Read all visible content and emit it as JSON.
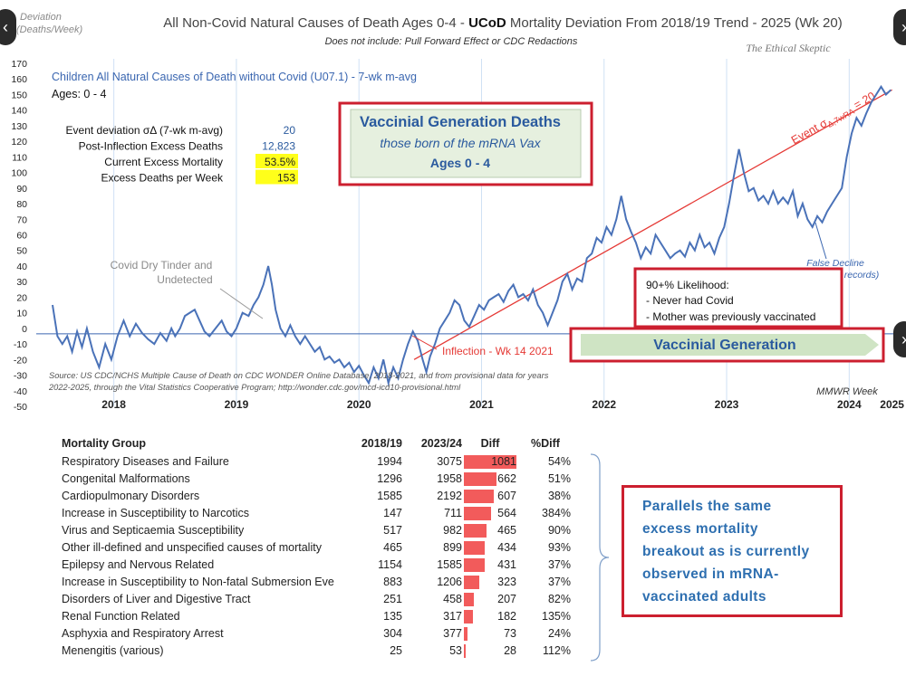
{
  "chart_data": {
    "type": "line",
    "title_parts": {
      "pre": "All Non-Covid Natural Causes of Death Ages 0-4 - ",
      "bold": "UCoD",
      "post": " Mortality Deviation From 2018/19 Trend - 2025 (Wk 20)"
    },
    "subtitle": "Does not include: Pull Forward Effect or CDC Redactions",
    "watermark": "The Ethical Skeptic",
    "ylabel": "Deviation (Deaths/Week)",
    "xlabel": "MMWR Week",
    "ylim": [
      -50,
      170
    ],
    "yticks": [
      -50,
      -40,
      -30,
      -20,
      -10,
      0,
      10,
      20,
      30,
      40,
      50,
      60,
      70,
      80,
      90,
      100,
      110,
      120,
      130,
      140,
      150,
      160,
      170
    ],
    "x_ticks": [
      "2018",
      "2019",
      "2020",
      "2021",
      "2022",
      "2023",
      "2024",
      "2025"
    ],
    "series": [
      {
        "name": "Children All Natural Causes of Death without Covid (U07.1) - 7-wk m-avg",
        "color": "#4a72b8",
        "points": [
          [
            2018.0,
            15
          ],
          [
            2018.04,
            -5
          ],
          [
            2018.08,
            -10
          ],
          [
            2018.12,
            -5
          ],
          [
            2018.16,
            -15
          ],
          [
            2018.2,
            -2
          ],
          [
            2018.24,
            -12
          ],
          [
            2018.28,
            0
          ],
          [
            2018.33,
            -15
          ],
          [
            2018.38,
            -25
          ],
          [
            2018.43,
            -10
          ],
          [
            2018.48,
            -20
          ],
          [
            2018.53,
            -5
          ],
          [
            2018.58,
            5
          ],
          [
            2018.63,
            -5
          ],
          [
            2018.68,
            3
          ],
          [
            2018.73,
            -3
          ],
          [
            2018.78,
            -7
          ],
          [
            2018.83,
            -10
          ],
          [
            2018.88,
            -3
          ],
          [
            2018.93,
            -8
          ],
          [
            2018.97,
            0
          ],
          [
            2019.0,
            -5
          ],
          [
            2019.04,
            0
          ],
          [
            2019.08,
            8
          ],
          [
            2019.12,
            10
          ],
          [
            2019.16,
            12
          ],
          [
            2019.2,
            5
          ],
          [
            2019.24,
            -2
          ],
          [
            2019.28,
            -5
          ],
          [
            2019.33,
            0
          ],
          [
            2019.38,
            5
          ],
          [
            2019.42,
            -2
          ],
          [
            2019.46,
            -5
          ],
          [
            2019.5,
            0
          ],
          [
            2019.55,
            10
          ],
          [
            2019.6,
            8
          ],
          [
            2019.64,
            15
          ],
          [
            2019.68,
            20
          ],
          [
            2019.72,
            28
          ],
          [
            2019.76,
            40
          ],
          [
            2019.79,
            28
          ],
          [
            2019.82,
            12
          ],
          [
            2019.86,
            0
          ],
          [
            2019.9,
            -5
          ],
          [
            2019.94,
            2
          ],
          [
            2019.98,
            -5
          ],
          [
            2020.02,
            -10
          ],
          [
            2020.06,
            -5
          ],
          [
            2020.1,
            -10
          ],
          [
            2020.14,
            -15
          ],
          [
            2020.18,
            -12
          ],
          [
            2020.22,
            -20
          ],
          [
            2020.26,
            -18
          ],
          [
            2020.3,
            -22
          ],
          [
            2020.34,
            -20
          ],
          [
            2020.38,
            -25
          ],
          [
            2020.42,
            -22
          ],
          [
            2020.46,
            -28
          ],
          [
            2020.5,
            -24
          ],
          [
            2020.54,
            -30
          ],
          [
            2020.58,
            -35
          ],
          [
            2020.62,
            -25
          ],
          [
            2020.66,
            -32
          ],
          [
            2020.7,
            -20
          ],
          [
            2020.74,
            -35
          ],
          [
            2020.78,
            -25
          ],
          [
            2020.82,
            -32
          ],
          [
            2020.86,
            -20
          ],
          [
            2020.9,
            -10
          ],
          [
            2020.94,
            -2
          ],
          [
            2020.98,
            -8
          ],
          [
            2021.02,
            -20
          ],
          [
            2021.05,
            -28
          ],
          [
            2021.08,
            -18
          ],
          [
            2021.12,
            -10
          ],
          [
            2021.16,
            0
          ],
          [
            2021.2,
            5
          ],
          [
            2021.24,
            10
          ],
          [
            2021.28,
            18
          ],
          [
            2021.32,
            15
          ],
          [
            2021.36,
            5
          ],
          [
            2021.4,
            1
          ],
          [
            2021.44,
            8
          ],
          [
            2021.48,
            15
          ],
          [
            2021.52,
            12
          ],
          [
            2021.56,
            18
          ],
          [
            2021.6,
            20
          ],
          [
            2021.64,
            22
          ],
          [
            2021.68,
            17
          ],
          [
            2021.72,
            24
          ],
          [
            2021.76,
            28
          ],
          [
            2021.8,
            20
          ],
          [
            2021.84,
            22
          ],
          [
            2021.88,
            18
          ],
          [
            2021.92,
            25
          ],
          [
            2021.96,
            15
          ],
          [
            2022.0,
            10
          ],
          [
            2022.04,
            2
          ],
          [
            2022.08,
            10
          ],
          [
            2022.12,
            18
          ],
          [
            2022.16,
            30
          ],
          [
            2022.2,
            35
          ],
          [
            2022.24,
            25
          ],
          [
            2022.28,
            32
          ],
          [
            2022.32,
            30
          ],
          [
            2022.36,
            45
          ],
          [
            2022.4,
            48
          ],
          [
            2022.44,
            58
          ],
          [
            2022.48,
            55
          ],
          [
            2022.52,
            65
          ],
          [
            2022.56,
            60
          ],
          [
            2022.6,
            70
          ],
          [
            2022.64,
            85
          ],
          [
            2022.68,
            70
          ],
          [
            2022.72,
            62
          ],
          [
            2022.76,
            55
          ],
          [
            2022.8,
            45
          ],
          [
            2022.84,
            52
          ],
          [
            2022.88,
            48
          ],
          [
            2022.92,
            60
          ],
          [
            2022.96,
            55
          ],
          [
            2023.0,
            50
          ],
          [
            2023.04,
            45
          ],
          [
            2023.08,
            48
          ],
          [
            2023.12,
            50
          ],
          [
            2023.16,
            46
          ],
          [
            2023.2,
            55
          ],
          [
            2023.24,
            50
          ],
          [
            2023.28,
            60
          ],
          [
            2023.32,
            52
          ],
          [
            2023.36,
            55
          ],
          [
            2023.4,
            48
          ],
          [
            2023.44,
            58
          ],
          [
            2023.48,
            65
          ],
          [
            2023.52,
            80
          ],
          [
            2023.56,
            98
          ],
          [
            2023.6,
            115
          ],
          [
            2023.64,
            100
          ],
          [
            2023.68,
            88
          ],
          [
            2023.72,
            90
          ],
          [
            2023.76,
            82
          ],
          [
            2023.8,
            85
          ],
          [
            2023.84,
            80
          ],
          [
            2023.88,
            88
          ],
          [
            2023.92,
            80
          ],
          [
            2023.96,
            84
          ],
          [
            2024.0,
            80
          ],
          [
            2024.04,
            88
          ],
          [
            2024.08,
            72
          ],
          [
            2024.12,
            80
          ],
          [
            2024.16,
            70
          ],
          [
            2024.2,
            65
          ],
          [
            2024.24,
            72
          ],
          [
            2024.28,
            68
          ],
          [
            2024.32,
            75
          ],
          [
            2024.36,
            80
          ],
          [
            2024.4,
            85
          ],
          [
            2024.44,
            90
          ],
          [
            2024.48,
            110
          ],
          [
            2024.52,
            125
          ],
          [
            2024.56,
            135
          ],
          [
            2024.6,
            130
          ],
          [
            2024.64,
            138
          ],
          [
            2024.68,
            145
          ],
          [
            2024.72,
            150
          ],
          [
            2024.76,
            155
          ],
          [
            2024.8,
            150
          ],
          [
            2024.84,
            153
          ]
        ]
      },
      {
        "name": "Event σ trend",
        "color": "#e53935",
        "points": [
          [
            2020.95,
            -20
          ],
          [
            2024.85,
            153
          ]
        ]
      }
    ],
    "baseline": 0
  },
  "labels": {
    "series_label": "Children All Natural Causes of Death without Covid (U07.1) - 7-wk m-avg",
    "ages": "Ages: 0 - 4",
    "trend_label": "Event σΔ,7wRA = 20",
    "false_decline": "False Decline\n(missing records)",
    "dry_tinder": "Covid Dry Tinder and\nUndetected",
    "inflection": "Inflection - Wk 14 2021",
    "source": "Source: US CDC/NCHS Multiple Cause of Death on CDC WONDER Online Database, 2018-2021, and from provisional data for years 2022-2025, through the Vital Statistics Cooperative Program; http://wonder.cdc.gov/mcd-icd10-provisional.html"
  },
  "stats": [
    {
      "label": "Event deviation σΔ (7-wk m-avg)",
      "value": "20",
      "highlight": false
    },
    {
      "label": "Post-Inflection Excess Deaths",
      "value": "12,823",
      "highlight": false
    },
    {
      "label": "Current Excess Mortality",
      "value": "53.5%",
      "highlight": true
    },
    {
      "label": "Excess Deaths per Week",
      "value": "153",
      "highlight": true
    }
  ],
  "callout_main": {
    "title": "Vaccinial Generation Deaths",
    "line2": "those born of the mRNA Vax",
    "line3": "Ages 0 - 4"
  },
  "callout_likelihood": {
    "title": "90+% Likelihood:",
    "items": [
      "- Never had Covid",
      "- Mother was previously vaccinated"
    ]
  },
  "vaccinial_arrow": "Vaccinial Generation",
  "table": {
    "headers": [
      "Mortality Group",
      "2018/19",
      "2023/24",
      "Diff",
      "%Diff"
    ],
    "rows": [
      {
        "group": "Respiratory Diseases and Failure",
        "a": "1994",
        "b": "3075",
        "diff": 1081,
        "pct": "54%"
      },
      {
        "group": "Congenital Malformations",
        "a": "1296",
        "b": "1958",
        "diff": 662,
        "pct": "51%"
      },
      {
        "group": "Cardiopulmonary Disorders",
        "a": "1585",
        "b": "2192",
        "diff": 607,
        "pct": "38%"
      },
      {
        "group": "Increase in Susceptibility to Narcotics",
        "a": "147",
        "b": "711",
        "diff": 564,
        "pct": "384%"
      },
      {
        "group": "Virus and Septicaemia Susceptibility",
        "a": "517",
        "b": "982",
        "diff": 465,
        "pct": "90%"
      },
      {
        "group": "Other ill-defined and unspecified causes of mortality",
        "a": "465",
        "b": "899",
        "diff": 434,
        "pct": "93%"
      },
      {
        "group": "Epilepsy and Nervous Related",
        "a": "1154",
        "b": "1585",
        "diff": 431,
        "pct": "37%"
      },
      {
        "group": "Increase in Susceptibility to Non-fatal Submersion Eve",
        "a": "883",
        "b": "1206",
        "diff": 323,
        "pct": "37%"
      },
      {
        "group": "Disorders of Liver and Digestive Tract",
        "a": "251",
        "b": "458",
        "diff": 207,
        "pct": "82%"
      },
      {
        "group": "Renal Function Related",
        "a": "135",
        "b": "317",
        "diff": 182,
        "pct": "135%"
      },
      {
        "group": "Asphyxia and Respiratory Arrest",
        "a": "304",
        "b": "377",
        "diff": 73,
        "pct": "24%"
      },
      {
        "group": "Menengitis (various)",
        "a": "25",
        "b": "53",
        "diff": 28,
        "pct": "112%"
      }
    ]
  },
  "table_callout": "Parallels the same excess mortality breakout as is currently observed in mRNA-vaccinated adults",
  "nav": {
    "prev": "‹",
    "next": "›"
  }
}
